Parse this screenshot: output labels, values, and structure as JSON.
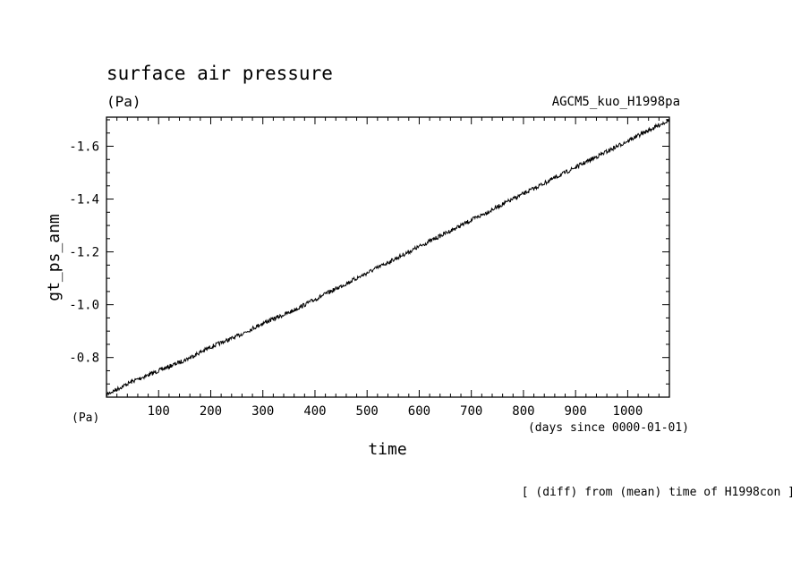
{
  "chart_data": {
    "type": "line",
    "title": "surface air pressure",
    "units_top": "(Pa)",
    "dataset_label": "AGCM5_kuo_H1998pa",
    "ylabel": "gt_ps_anm",
    "yunits": "(Pa)",
    "xlabel": "time",
    "xunits": "(days since 0000-01-01)",
    "footnote": "[ (diff) from (mean) time of H1998con ]",
    "xlim": [
      0,
      1080
    ],
    "ylim": [
      -0.65,
      -1.71
    ],
    "y_axis_inverted": true,
    "x_ticks": [
      100,
      200,
      300,
      400,
      500,
      600,
      700,
      800,
      900,
      1000
    ],
    "x_tick_labels": [
      "100",
      "200",
      "300",
      "400",
      "500",
      "600",
      "700",
      "800",
      "900",
      "1000"
    ],
    "y_ticks": [
      -0.8,
      -1.0,
      -1.2,
      -1.4,
      -1.6
    ],
    "y_tick_labels": [
      "-0.8",
      "-1.0",
      "-1.2",
      "-1.4",
      "-1.6"
    ],
    "grid": false,
    "series": [
      {
        "x": [
          0,
          50,
          100,
          150,
          200,
          250,
          300,
          350,
          400,
          450,
          500,
          550,
          600,
          650,
          700,
          750,
          800,
          850,
          900,
          950,
          1000,
          1050,
          1080
        ],
        "values": [
          -0.66,
          -0.71,
          -0.75,
          -0.79,
          -0.84,
          -0.88,
          -0.93,
          -0.97,
          -1.02,
          -1.07,
          -1.12,
          -1.17,
          -1.22,
          -1.27,
          -1.32,
          -1.37,
          -1.42,
          -1.47,
          -1.52,
          -1.57,
          -1.62,
          -1.67,
          -1.7
        ]
      }
    ]
  }
}
